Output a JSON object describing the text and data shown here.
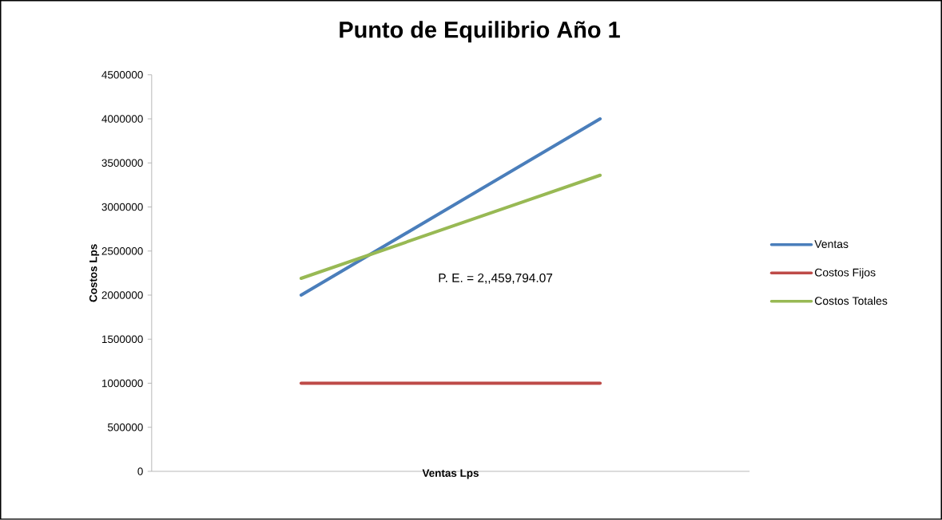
{
  "chart_data": {
    "type": "line",
    "title": "Punto de Equilibrio Año 1",
    "xlabel": "Ventas Lps",
    "ylabel": "Costos Lps",
    "categories": [
      null,
      null
    ],
    "series": [
      {
        "name": "Ventas",
        "color": "#4a7ebb",
        "values": [
          2000000,
          4000000
        ]
      },
      {
        "name": "Costos Fijos",
        "color": "#be4b48",
        "values": [
          1000000,
          1000000
        ]
      },
      {
        "name": "Costos Totales",
        "color": "#98b954",
        "values": [
          2190000,
          3360000
        ]
      }
    ],
    "ylim": [
      0,
      4500000
    ],
    "yticks": [
      0,
      500000,
      1000000,
      1500000,
      2000000,
      2500000,
      3000000,
      3500000,
      4000000,
      4500000
    ],
    "annotations": [
      "P. E. = 2,,459,794.07"
    ],
    "legend": "right",
    "grid": false,
    "marker": "none",
    "line_style": "solid"
  }
}
